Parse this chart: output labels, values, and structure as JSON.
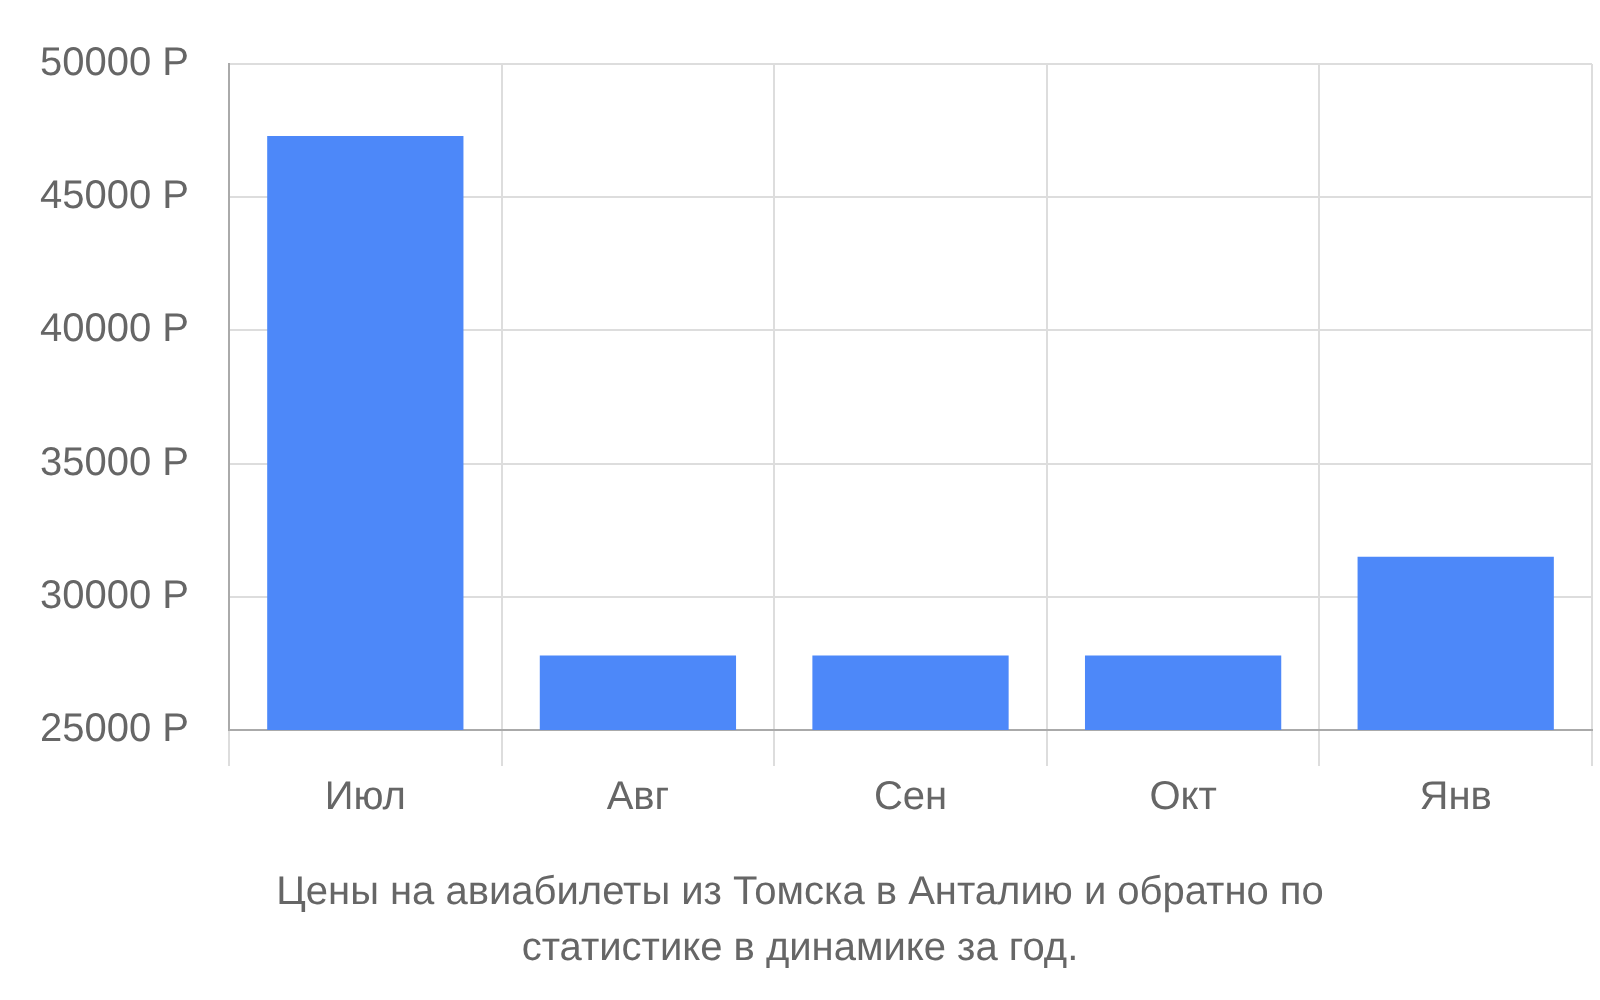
{
  "chart_data": {
    "type": "bar",
    "title": "Цены на авиабилеты из Томска в Анталию и обратно по статистике в динамике за год.",
    "categories": [
      "Июл",
      "Авг",
      "Сен",
      "Окт",
      "Янв"
    ],
    "values": [
      47300,
      27800,
      27800,
      27800,
      31500
    ],
    "color": "#4d88f9",
    "ylim": [
      25000,
      50000
    ],
    "yticks": [
      {
        "value": 25000,
        "label": "25000 Р"
      },
      {
        "value": 30000,
        "label": "30000 Р"
      },
      {
        "value": 35000,
        "label": "35000 Р"
      },
      {
        "value": 40000,
        "label": "40000 Р"
      },
      {
        "value": 45000,
        "label": "45000 Р"
      },
      {
        "value": 50000,
        "label": "50000 Р"
      }
    ],
    "grid": true
  }
}
